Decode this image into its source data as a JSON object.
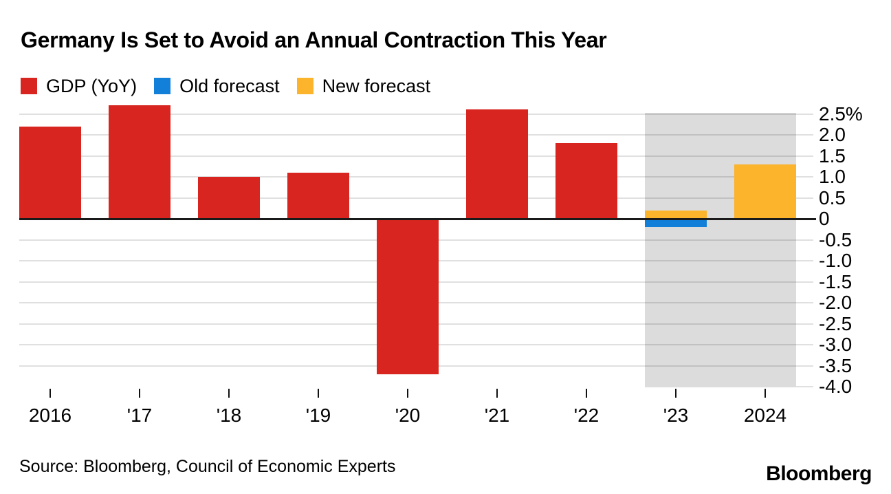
{
  "chart_data": {
    "type": "bar",
    "title": "Germany Is Set to Avoid an Annual Contraction This Year",
    "categories": [
      "2016",
      "'17",
      "'18",
      "'19",
      "'20",
      "'21",
      "'22",
      "'23",
      "2024"
    ],
    "series": [
      {
        "name": "GDP (YoY)",
        "color": "#d8251f",
        "values": [
          2.2,
          2.7,
          1.0,
          1.1,
          -3.7,
          2.6,
          1.8,
          null,
          null
        ]
      },
      {
        "name": "Old forecast",
        "color": "#1280d8",
        "values": [
          null,
          null,
          null,
          null,
          null,
          null,
          null,
          -0.2,
          null
        ]
      },
      {
        "name": "New forecast",
        "color": "#fbb42c",
        "values": [
          null,
          null,
          null,
          null,
          null,
          null,
          null,
          0.2,
          1.3
        ]
      }
    ],
    "ylabel": "",
    "xlabel": "",
    "ylim": [
      -4.0,
      2.5
    ],
    "ytick_step": 0.5,
    "ytick_labels": [
      "2.5%",
      "2.0",
      "1.5",
      "1.0",
      "0.5",
      "0",
      "-0.5",
      "-1.0",
      "-1.5",
      "-2.0",
      "-2.5",
      "-3.0",
      "-3.5",
      "-4.0"
    ],
    "grid": "horizontal",
    "legend_position": "top-left",
    "forecast_band": {
      "start_category": "'23",
      "end_category": "2024",
      "color": "#dcdcdc"
    }
  },
  "source_line": "Source: Bloomberg, Council of Economic Experts",
  "branding": {
    "logo_text": "Bloomberg"
  }
}
